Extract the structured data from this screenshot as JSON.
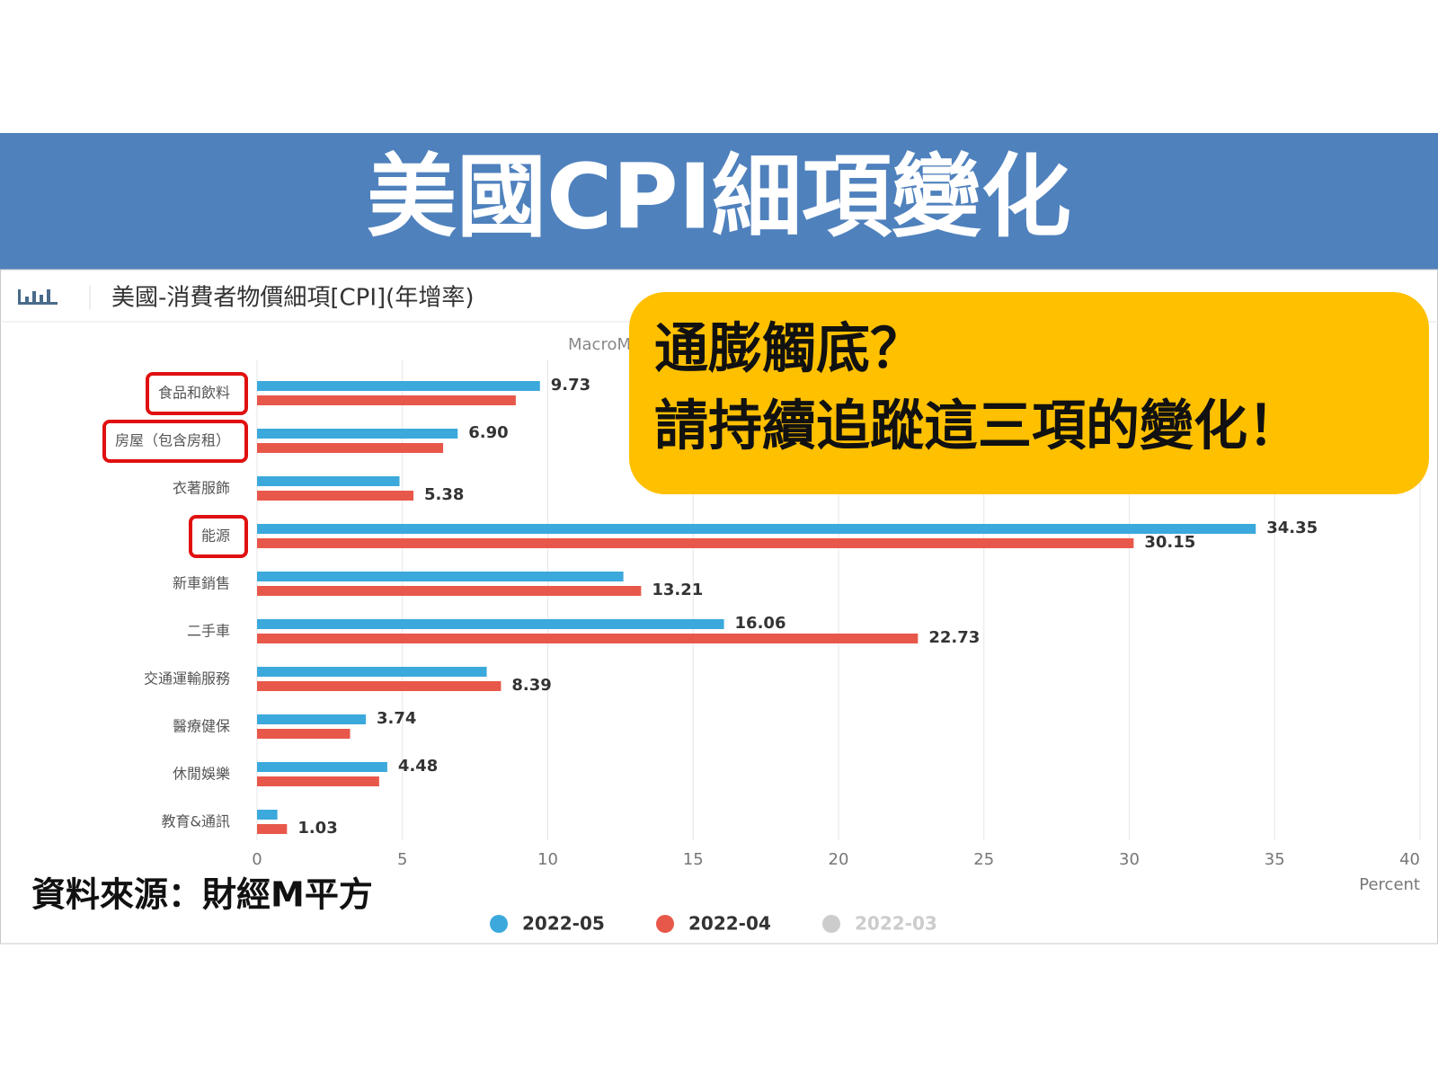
{
  "banner_title": "美國CPI細項變化",
  "callout": [
    "通膨觸底？",
    "請持續追蹤這三項的變化！"
  ],
  "source": "資料來源：財經M平方",
  "chart_data": {
    "type": "hbar",
    "title": "美國-消費者物價細項[CPI](年增率)",
    "watermark": "MacroMicro",
    "x_label": "Percent",
    "categories": [
      "食品和飲料",
      "房屋（包含房租）",
      "衣著服飾",
      "能源",
      "新車銷售",
      "二手車",
      "交通運輸服務",
      "醫療健保",
      "休閒娛樂",
      "教育&通訊"
    ],
    "highlight_categories": [
      0,
      1,
      3
    ],
    "series": [
      {
        "name": "2022-05",
        "color": "#3ba9dc",
        "visible": true,
        "values": [
          9.73,
          6.9,
          4.9,
          34.35,
          12.6,
          16.06,
          7.9,
          3.74,
          4.48,
          0.7
        ],
        "value_labels": [
          "9.73",
          "6.90",
          null,
          "34.35",
          null,
          "16.06",
          null,
          "3.74",
          "4.48",
          null
        ]
      },
      {
        "name": "2022-04",
        "color": "#e8584a",
        "visible": true,
        "values": [
          8.9,
          6.4,
          5.38,
          30.15,
          13.21,
          22.73,
          8.39,
          3.2,
          4.2,
          1.03
        ],
        "value_labels": [
          null,
          null,
          "5.38",
          "30.15",
          "13.21",
          "22.73",
          "8.39",
          null,
          null,
          "1.03"
        ]
      },
      {
        "name": "2022-03",
        "color": "#cccccc",
        "visible": false,
        "values": [
          null,
          null,
          null,
          null,
          null,
          null,
          null,
          null,
          null,
          null
        ]
      }
    ],
    "xlim": [
      0,
      40
    ],
    "xticks": [
      0,
      5,
      10,
      15,
      20,
      25,
      30,
      35,
      40
    ],
    "grid": true,
    "legend": "bottom"
  }
}
